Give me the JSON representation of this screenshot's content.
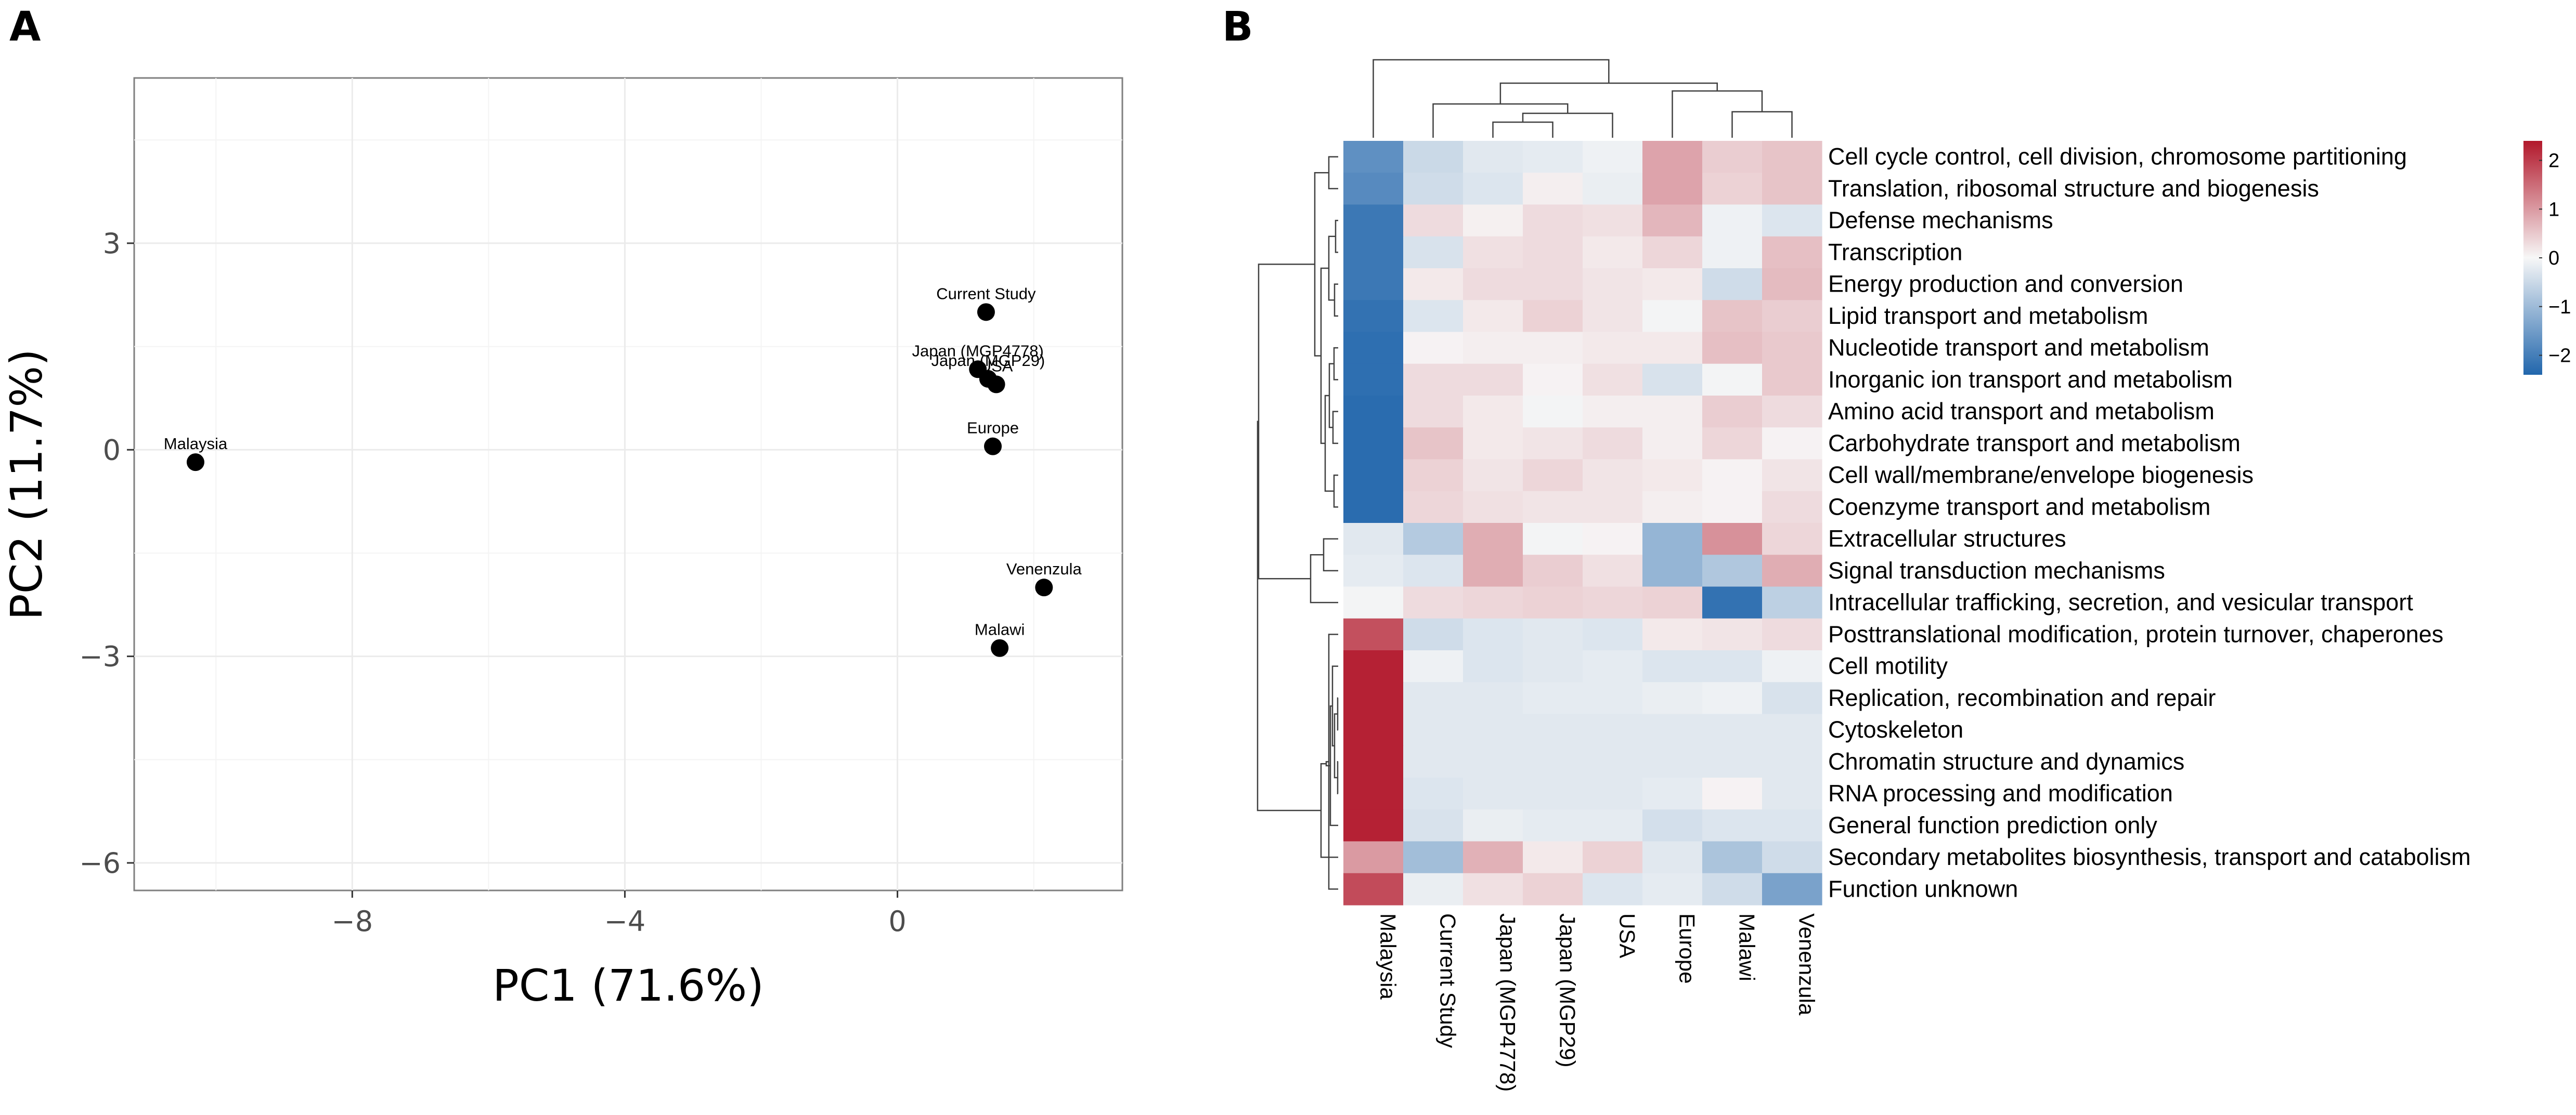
{
  "panels": {
    "a_label": "A",
    "b_label": "B"
  },
  "chart_data": [
    {
      "type": "scatter",
      "title": "",
      "xlabel": "PC1 (71.6%)",
      "ylabel": "PC2 (11.7%)",
      "xlim": [
        -11.2,
        3.3
      ],
      "ylim": [
        -6.4,
        5.4
      ],
      "xticks": [
        -8,
        -4,
        0
      ],
      "yticks": [
        3,
        0,
        -3,
        -6
      ],
      "xtick_labels": [
        "−8",
        "−4",
        "0"
      ],
      "ytick_labels": [
        "3",
        "0",
        "−3",
        "−6"
      ],
      "grid": true,
      "points": [
        {
          "name": "Malaysia",
          "x": -10.3,
          "y": -0.18
        },
        {
          "name": "Current Study",
          "x": 1.3,
          "y": 2.0
        },
        {
          "name": "Japan (MGP4778)",
          "x": 1.18,
          "y": 1.17
        },
        {
          "name": "Japan (MGP29)",
          "x": 1.33,
          "y": 1.03
        },
        {
          "name": "USA",
          "x": 1.45,
          "y": 0.95
        },
        {
          "name": "Europe",
          "x": 1.4,
          "y": 0.05
        },
        {
          "name": "Venenzula",
          "x": 2.15,
          "y": -2.0
        },
        {
          "name": "Malawi",
          "x": 1.5,
          "y": -2.88
        }
      ]
    },
    {
      "type": "heatmap",
      "title": "",
      "columns": [
        "Malaysia",
        "Current Study",
        "Japan (MGP4778)",
        "Japan (MGP29)",
        "USA",
        "Europe",
        "Malawi",
        "Venenzula"
      ],
      "rows": [
        "Cell cycle control, cell division, chromosome partitioning",
        "Translation, ribosomal structure and biogenesis",
        "Defense mechanisms",
        "Transcription",
        "Energy production and conversion",
        "Lipid transport and metabolism",
        "Nucleotide transport and metabolism",
        "Inorganic ion transport and metabolism",
        "Amino acid transport and metabolism",
        "Carbohydrate transport and metabolism",
        "Cell wall/membrane/envelope biogenesis",
        "Coenzyme transport and metabolism",
        "Extracellular structures",
        "Signal transduction mechanisms",
        "Intracellular trafficking, secretion, and vesicular transport",
        "Posttranslational modification, protein turnover, chaperones",
        "Cell motility",
        "Replication, recombination and repair",
        "Cytoskeleton",
        "Chromatin structure and dynamics",
        "RNA processing and modification",
        "General function prediction only",
        "Secondary metabolites biosynthesis, transport and catabolism",
        "Function unknown"
      ],
      "values": [
        [
          -1.7,
          -0.5,
          -0.25,
          -0.2,
          -0.1,
          0.9,
          0.45,
          0.55
        ],
        [
          -1.8,
          -0.45,
          -0.3,
          0.1,
          -0.15,
          0.9,
          0.4,
          0.55
        ],
        [
          -2.1,
          0.3,
          0.08,
          0.3,
          0.25,
          0.7,
          -0.1,
          -0.3
        ],
        [
          -2.1,
          -0.35,
          0.25,
          0.3,
          0.15,
          0.35,
          -0.1,
          0.6
        ],
        [
          -2.1,
          0.15,
          0.3,
          0.3,
          0.2,
          0.15,
          -0.45,
          0.65
        ],
        [
          -2.2,
          -0.3,
          0.15,
          0.4,
          0.2,
          -0.05,
          0.55,
          0.45
        ],
        [
          -2.25,
          0.05,
          0.1,
          0.1,
          0.15,
          0.15,
          0.6,
          0.5
        ],
        [
          -2.25,
          0.3,
          0.3,
          0.05,
          0.25,
          -0.35,
          -0.05,
          0.5
        ],
        [
          -2.3,
          0.3,
          0.15,
          -0.05,
          0.1,
          0.1,
          0.45,
          0.3
        ],
        [
          -2.3,
          0.55,
          0.15,
          0.2,
          0.3,
          0.1,
          0.35,
          0.05
        ],
        [
          -2.3,
          0.4,
          0.2,
          0.35,
          0.2,
          0.15,
          0.05,
          0.2
        ],
        [
          -2.3,
          0.35,
          0.25,
          0.2,
          0.2,
          0.1,
          0.05,
          0.3
        ],
        [
          -0.25,
          -0.75,
          0.8,
          -0.05,
          0.05,
          -1.1,
          1.1,
          0.35
        ],
        [
          -0.2,
          -0.3,
          0.8,
          0.45,
          0.25,
          -1.1,
          -0.8,
          0.8
        ],
        [
          -0.05,
          0.3,
          0.35,
          0.4,
          0.35,
          0.4,
          -2.2,
          -0.65
        ],
        [
          1.8,
          -0.45,
          -0.3,
          -0.25,
          -0.3,
          0.15,
          0.2,
          0.3
        ],
        [
          2.3,
          -0.1,
          -0.3,
          -0.25,
          -0.2,
          -0.3,
          -0.3,
          -0.1
        ],
        [
          2.3,
          -0.25,
          -0.25,
          -0.2,
          -0.2,
          -0.15,
          -0.1,
          -0.35
        ],
        [
          2.3,
          -0.25,
          -0.25,
          -0.25,
          -0.25,
          -0.25,
          -0.25,
          -0.25
        ],
        [
          2.3,
          -0.25,
          -0.25,
          -0.25,
          -0.25,
          -0.25,
          -0.25,
          -0.25
        ],
        [
          2.3,
          -0.3,
          -0.25,
          -0.25,
          -0.25,
          -0.2,
          0.05,
          -0.25
        ],
        [
          2.3,
          -0.35,
          -0.15,
          -0.2,
          -0.2,
          -0.4,
          -0.3,
          -0.3
        ],
        [
          1.0,
          -0.95,
          0.75,
          0.15,
          0.4,
          -0.25,
          -0.85,
          -0.45
        ],
        [
          1.85,
          -0.15,
          0.25,
          0.4,
          -0.3,
          -0.2,
          -0.45,
          -1.4
        ]
      ],
      "legend": {
        "ticks": [
          2,
          1,
          0,
          -1,
          -2
        ],
        "tick_labels": [
          "2",
          "1",
          "0",
          "−1",
          "−2"
        ],
        "range": [
          -2.4,
          2.4
        ]
      },
      "colors": {
        "low": "#2166ac",
        "mid": "#f7f7f7",
        "high": "#b2182b"
      }
    }
  ]
}
